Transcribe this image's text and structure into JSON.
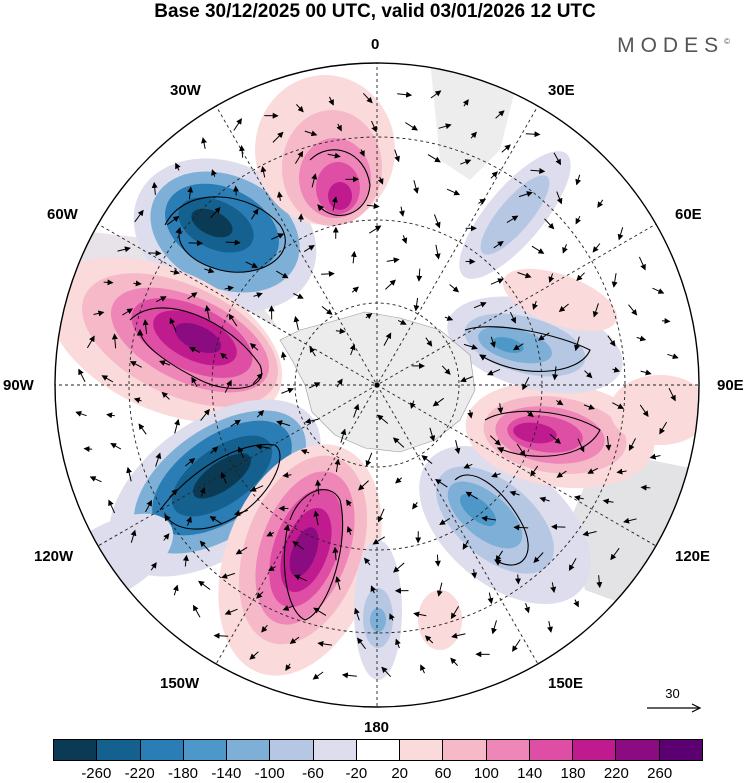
{
  "title": "Base 30/12/2025 00 UTC, valid 03/01/2026 12 UTC",
  "brand": "MODES",
  "brand_mark": "©",
  "longitude_labels": {
    "top": "0",
    "top_right": "30E",
    "upper_right": "60E",
    "right": "90E",
    "lower_right": "120E",
    "bottom_right": "150E",
    "bottom": "180",
    "bottom_left": "150W",
    "lower_left": "120W",
    "left": "90W",
    "upper_left": "60W",
    "top_left": "30W"
  },
  "reference_vector": {
    "label": "30",
    "icon": "right-arrow-icon"
  },
  "colorbar": {
    "colors": [
      "#0b3a55",
      "#14608f",
      "#2a7db5",
      "#4d98c8",
      "#7eafd6",
      "#b5c7e2",
      "#dedded",
      "#ffffff",
      "#fadada",
      "#f6b9c8",
      "#ee86b8",
      "#de4ea4",
      "#c01a8f",
      "#8b0c80",
      "#5a0070"
    ],
    "tick_labels": [
      "-260",
      "-220",
      "-180",
      "-140",
      "-100",
      "-60",
      "-20",
      "20",
      "60",
      "100",
      "140",
      "180",
      "220",
      "260"
    ]
  },
  "anomaly_centers": [
    {
      "name": "neg-30w-60w",
      "sign": "negative",
      "peak": -240
    },
    {
      "name": "pos-0-30w",
      "sign": "positive",
      "peak": 180
    },
    {
      "name": "pos-60w-90w",
      "sign": "positive",
      "peak": 230
    },
    {
      "name": "neg-90w-150w",
      "sign": "negative",
      "peak": -250
    },
    {
      "name": "pos-150w-180",
      "sign": "positive",
      "peak": 230
    },
    {
      "name": "neg-180",
      "sign": "negative",
      "peak": -100
    },
    {
      "name": "neg-120e-150e",
      "sign": "negative",
      "peak": -140
    },
    {
      "name": "pos-90e-120e",
      "sign": "positive",
      "peak": 220
    },
    {
      "name": "neg-60e-90e",
      "sign": "negative",
      "peak": -140
    },
    {
      "name": "neg-30e-60e",
      "sign": "negative",
      "peak": -100
    }
  ]
}
